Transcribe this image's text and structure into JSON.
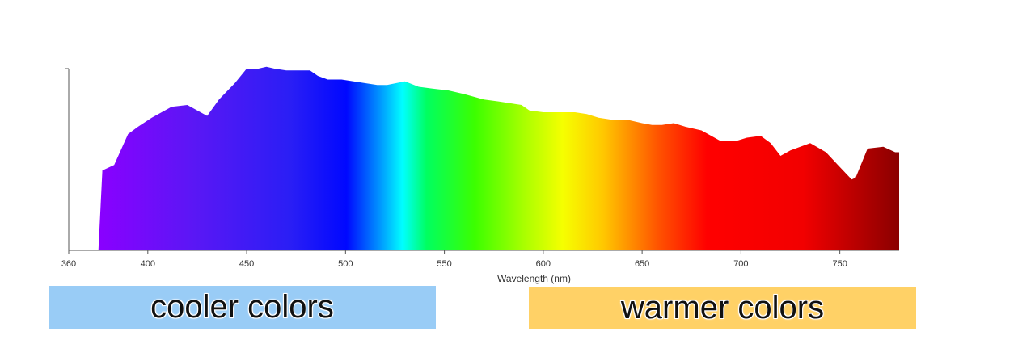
{
  "chart_data": {
    "type": "area",
    "xlabel": "Wavelength (nm)",
    "ylabel": "",
    "xlim": [
      360,
      780
    ],
    "ylim": [
      0,
      1
    ],
    "x_ticks": [
      360,
      400,
      450,
      500,
      550,
      600,
      650,
      700,
      750
    ],
    "series": [
      {
        "points": [
          [
            375,
            0.0
          ],
          [
            377,
            0.44
          ],
          [
            383,
            0.47
          ],
          [
            390,
            0.64
          ],
          [
            395,
            0.68
          ],
          [
            402,
            0.73
          ],
          [
            412,
            0.79
          ],
          [
            420,
            0.8
          ],
          [
            430,
            0.74
          ],
          [
            436,
            0.83
          ],
          [
            444,
            0.92
          ],
          [
            450,
            1.0
          ],
          [
            456,
            1.0
          ],
          [
            460,
            1.01
          ],
          [
            464,
            1.0
          ],
          [
            470,
            0.99
          ],
          [
            482,
            0.99
          ],
          [
            486,
            0.96
          ],
          [
            491,
            0.94
          ],
          [
            498,
            0.94
          ],
          [
            504,
            0.93
          ],
          [
            510,
            0.92
          ],
          [
            516,
            0.91
          ],
          [
            521,
            0.91
          ],
          [
            530,
            0.93
          ],
          [
            537,
            0.9
          ],
          [
            544,
            0.89
          ],
          [
            552,
            0.88
          ],
          [
            560,
            0.86
          ],
          [
            570,
            0.83
          ],
          [
            577,
            0.82
          ],
          [
            583,
            0.81
          ],
          [
            589,
            0.8
          ],
          [
            593,
            0.77
          ],
          [
            600,
            0.76
          ],
          [
            608,
            0.76
          ],
          [
            616,
            0.76
          ],
          [
            622,
            0.75
          ],
          [
            628,
            0.73
          ],
          [
            634,
            0.72
          ],
          [
            642,
            0.72
          ],
          [
            650,
            0.7
          ],
          [
            655,
            0.69
          ],
          [
            660,
            0.69
          ],
          [
            666,
            0.7
          ],
          [
            672,
            0.68
          ],
          [
            680,
            0.66
          ],
          [
            690,
            0.6
          ],
          [
            697,
            0.6
          ],
          [
            703,
            0.62
          ],
          [
            710,
            0.63
          ],
          [
            715,
            0.59
          ],
          [
            720,
            0.52
          ],
          [
            725,
            0.55
          ],
          [
            730,
            0.57
          ],
          [
            735,
            0.59
          ],
          [
            743,
            0.54
          ],
          [
            749,
            0.47
          ],
          [
            756,
            0.39
          ],
          [
            758,
            0.4
          ],
          [
            764,
            0.56
          ],
          [
            772,
            0.57
          ],
          [
            778,
            0.54
          ],
          [
            780,
            0.54
          ],
          [
            780,
            0.0
          ]
        ]
      }
    ],
    "fill": "visible-spectrum-gradient",
    "axis_color": "#555555"
  },
  "annotations": {
    "cooler": {
      "label": "cooler colors",
      "color": "#99ccf6"
    },
    "warmer": {
      "label": "warmer colors",
      "color": "#ffd166"
    }
  }
}
